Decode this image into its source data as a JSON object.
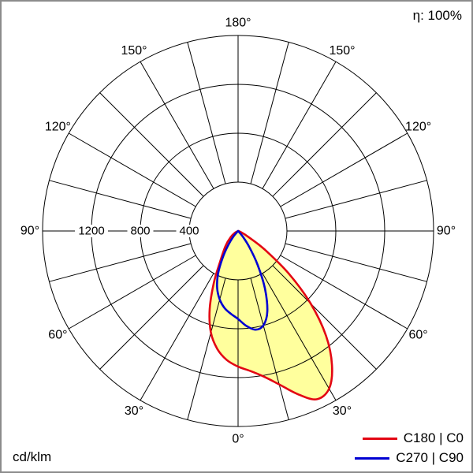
{
  "header": {
    "efficiency": "η: 100%"
  },
  "footer": {
    "unit": "cd/klm"
  },
  "chart_data": {
    "type": "polar",
    "subtype": "luminous-intensity-distribution",
    "unit": "cd/klm",
    "angle_zero": "bottom",
    "angle_labels_deg": [
      0,
      30,
      60,
      90,
      120,
      150,
      180
    ],
    "spoke_step_deg": 15,
    "rings": [
      400,
      800,
      1200,
      1600
    ],
    "ring_labels": [
      400,
      800,
      1200
    ],
    "r_max": 1600,
    "grid_color": "#000000",
    "series": [
      {
        "name": "C180 | C0",
        "color": "#e30613",
        "fill": "#ffff9d",
        "points": [
          [
            -70,
            0
          ],
          [
            -60,
            30
          ],
          [
            -50,
            80
          ],
          [
            -40,
            160
          ],
          [
            -30,
            300
          ],
          [
            -25,
            470
          ],
          [
            -20,
            680
          ],
          [
            -15,
            860
          ],
          [
            -10,
            980
          ],
          [
            -5,
            1060
          ],
          [
            0,
            1110
          ],
          [
            5,
            1150
          ],
          [
            10,
            1210
          ],
          [
            15,
            1300
          ],
          [
            20,
            1420
          ],
          [
            25,
            1520
          ],
          [
            30,
            1490
          ],
          [
            35,
            1340
          ],
          [
            40,
            1120
          ],
          [
            45,
            840
          ],
          [
            50,
            540
          ],
          [
            55,
            270
          ],
          [
            60,
            100
          ],
          [
            70,
            20
          ],
          [
            80,
            0
          ]
        ]
      },
      {
        "name": "C270 | C90",
        "color": "#0000d2",
        "fill": "none",
        "points": [
          [
            -50,
            0
          ],
          [
            -40,
            60
          ],
          [
            -35,
            140
          ],
          [
            -30,
            250
          ],
          [
            -25,
            390
          ],
          [
            -20,
            500
          ],
          [
            -15,
            580
          ],
          [
            -10,
            640
          ],
          [
            -5,
            680
          ],
          [
            0,
            720
          ],
          [
            5,
            780
          ],
          [
            10,
            820
          ],
          [
            15,
            800
          ],
          [
            20,
            700
          ],
          [
            25,
            520
          ],
          [
            30,
            320
          ],
          [
            35,
            160
          ],
          [
            40,
            60
          ],
          [
            45,
            0
          ]
        ]
      }
    ]
  }
}
